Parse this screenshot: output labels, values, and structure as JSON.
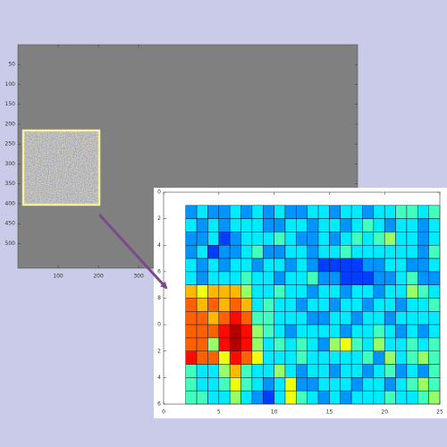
{
  "chart_data": [
    {
      "type": "image",
      "xlim": [
        0,
        844
      ],
      "xticks": [
        100,
        200,
        300
      ],
      "ylim": [
        0,
        562
      ],
      "yticks": [
        50,
        100,
        150,
        200,
        250,
        300,
        350,
        400,
        450,
        500
      ],
      "color": "#808080"
    },
    {
      "type": "heatmap",
      "colormap": "jet",
      "zlim": [
        0,
        10
      ],
      "xlim": [
        0,
        25
      ],
      "xticks": [
        0,
        5,
        10,
        15,
        20,
        25
      ],
      "ylim": [
        0,
        16
      ],
      "yticks": [
        0,
        2,
        4,
        6,
        8,
        {
          "value": 10,
          "label": "0"
        },
        {
          "value": 12,
          "label": "2"
        },
        {
          "value": 14,
          "label": "4"
        },
        {
          "value": 16,
          "label": "6"
        }
      ],
      "z": [
        [
          2,
          3,
          2,
          2,
          3,
          2,
          3,
          2,
          3,
          2,
          2,
          3,
          3,
          2,
          3,
          3,
          2,
          3,
          3,
          4,
          4,
          3,
          4
        ],
        [
          3,
          2,
          3,
          2,
          3,
          3,
          3,
          2,
          2,
          3,
          3,
          2,
          3,
          3,
          2,
          3,
          4,
          3,
          2,
          3,
          3,
          2,
          3
        ],
        [
          2,
          2,
          3,
          1,
          2,
          3,
          3,
          3,
          4,
          3,
          2,
          2,
          3,
          2,
          3,
          4,
          3,
          4,
          5,
          3,
          3,
          2,
          3
        ],
        [
          2,
          3,
          1,
          2,
          2,
          3,
          4,
          2,
          2,
          3,
          3,
          2,
          3,
          3,
          4,
          3,
          3,
          3,
          3,
          3,
          3,
          2,
          4
        ],
        [
          3,
          2,
          3,
          2,
          3,
          3,
          2,
          3,
          3,
          2,
          3,
          2,
          1,
          1,
          1,
          1,
          2,
          2,
          3,
          3,
          2,
          2,
          3
        ],
        [
          3,
          2,
          3,
          3,
          3,
          4,
          3,
          3,
          2,
          3,
          3,
          4,
          2,
          2,
          1,
          1,
          1,
          2,
          2,
          3,
          4,
          2,
          2
        ],
        [
          7,
          6,
          7,
          7,
          7,
          5,
          3,
          3,
          4,
          3,
          3,
          2,
          3,
          3,
          2,
          3,
          3,
          2,
          3,
          3,
          5,
          4,
          3
        ],
        [
          8,
          7,
          8,
          7,
          8,
          7,
          3,
          4,
          3,
          3,
          2,
          3,
          3,
          2,
          3,
          3,
          2,
          3,
          3,
          2,
          3,
          3,
          4
        ],
        [
          8,
          8,
          7,
          8,
          9,
          8,
          4,
          4,
          3,
          3,
          3,
          2,
          2,
          3,
          3,
          2,
          3,
          3,
          2,
          3,
          3,
          3,
          3
        ],
        [
          8,
          8,
          8,
          9,
          10,
          9,
          5,
          4,
          3,
          2,
          3,
          3,
          3,
          3,
          2,
          3,
          3,
          4,
          3,
          2,
          3,
          2,
          3
        ],
        [
          8,
          8,
          5,
          9,
          10,
          9,
          5,
          3,
          4,
          3,
          4,
          3,
          2,
          5,
          6,
          4,
          3,
          5,
          3,
          3,
          4,
          3,
          4
        ],
        [
          9,
          8,
          8,
          6,
          9,
          8,
          6,
          3,
          3,
          3,
          4,
          3,
          3,
          3,
          3,
          3,
          4,
          2,
          5,
          3,
          4,
          5,
          4
        ],
        [
          4,
          3,
          3,
          5,
          7,
          4,
          3,
          3,
          5,
          3,
          2,
          3,
          3,
          2,
          3,
          3,
          2,
          3,
          4,
          2,
          3,
          2,
          4
        ],
        [
          4,
          3,
          3,
          4,
          6,
          4,
          3,
          2,
          3,
          6,
          2,
          2,
          3,
          3,
          3,
          2,
          3,
          3,
          2,
          3,
          4,
          5,
          4
        ],
        [
          4,
          4,
          3,
          3,
          5,
          3,
          2,
          1,
          3,
          6,
          4,
          3,
          2,
          3,
          2,
          3,
          3,
          3,
          4,
          3,
          3,
          4,
          5
        ]
      ]
    }
  ]
}
